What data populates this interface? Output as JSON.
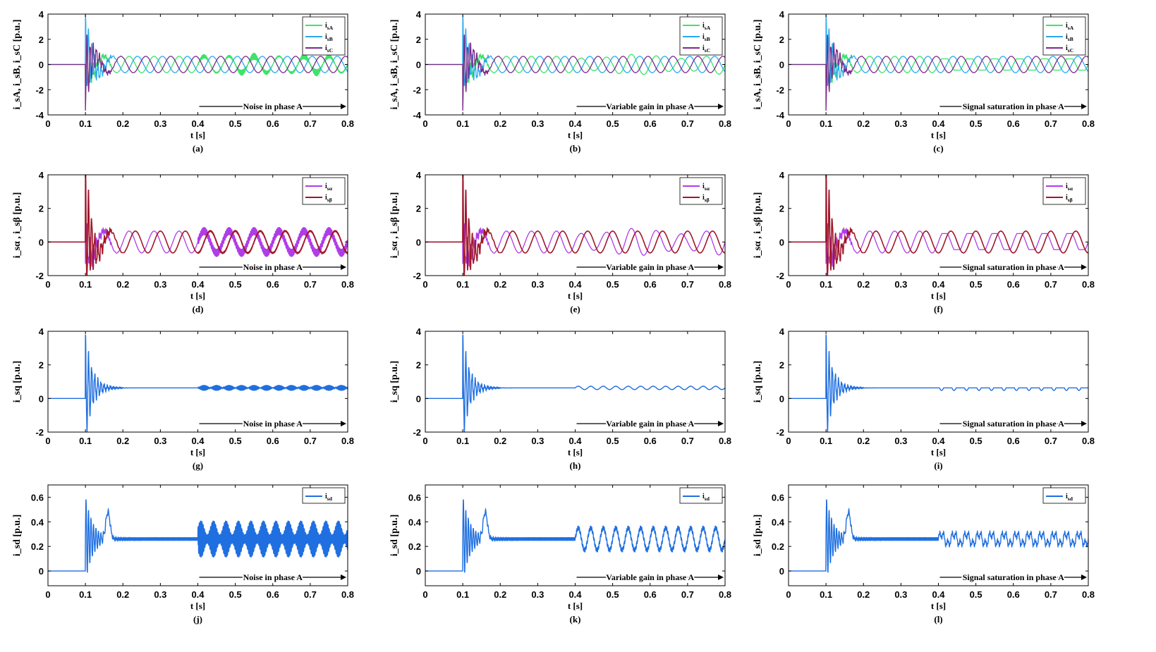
{
  "figure": {
    "colors": {
      "isA": "#3ee36a",
      "isB": "#2ba8ef",
      "isC": "#7a2a8a",
      "ialpha": "#b03ce8",
      "ibeta": "#a0182c",
      "iq": "#1f6fe0",
      "id": "#1f6fe0"
    },
    "columns": [
      "Noise in phase A",
      "Variable gain in phase A",
      "Signal saturation in phase A"
    ]
  },
  "chart_data": [
    {
      "panel": "(a)",
      "type": "line",
      "row": 0,
      "col": 0,
      "ylabel": "i_sA, i_sB, i_sC [p.u.]",
      "xlabel": "t [s]",
      "xlim": [
        0,
        0.8
      ],
      "ylim": [
        -4,
        4
      ],
      "xticks": [
        "0",
        "0.1",
        "0.2",
        "0.3",
        "0.4",
        "0.5",
        "0.6",
        "0.7",
        "0.8"
      ],
      "yticks": [
        "4",
        "2",
        "0",
        "-2",
        "-4"
      ],
      "series": [
        {
          "name": "i_sA"
        },
        {
          "name": "i_sB"
        },
        {
          "name": "i_sC"
        }
      ],
      "annotation": "Noise in phase A",
      "legend": "top-right",
      "grid": false
    },
    {
      "panel": "(b)",
      "type": "line",
      "row": 0,
      "col": 1,
      "ylabel": "i_sA, i_sB, i_sC [p.u.]",
      "xlabel": "t [s]",
      "xlim": [
        0,
        0.8
      ],
      "ylim": [
        -4,
        4
      ],
      "xticks": [
        "0",
        "0.1",
        "0.2",
        "0.3",
        "0.4",
        "0.5",
        "0.6",
        "0.7",
        "0.8"
      ],
      "yticks": [
        "4",
        "2",
        "0",
        "-2",
        "-4"
      ],
      "series": [
        {
          "name": "i_sA"
        },
        {
          "name": "i_sB"
        },
        {
          "name": "i_sC"
        }
      ],
      "annotation": "Variable gain in phase A",
      "legend": "top-right",
      "grid": false
    },
    {
      "panel": "(c)",
      "type": "line",
      "row": 0,
      "col": 2,
      "ylabel": "i_sA, i_sB, i_sC [p.u.]",
      "xlabel": "t [s]",
      "xlim": [
        0,
        0.8
      ],
      "ylim": [
        -4,
        4
      ],
      "xticks": [
        "0",
        "0.1",
        "0.2",
        "0.3",
        "0.4",
        "0.5",
        "0.6",
        "0.7",
        "0.8"
      ],
      "yticks": [
        "4",
        "2",
        "0",
        "-2",
        "-4"
      ],
      "series": [
        {
          "name": "i_sA"
        },
        {
          "name": "i_sB"
        },
        {
          "name": "i_sC"
        }
      ],
      "annotation": "Signal saturation in phase A",
      "legend": "top-right",
      "grid": false
    },
    {
      "panel": "(d)",
      "type": "line",
      "row": 1,
      "col": 0,
      "ylabel": "i_sα , i_sβ [p.u.]",
      "xlabel": "t [s]",
      "xlim": [
        0,
        0.8
      ],
      "ylim": [
        -2,
        4
      ],
      "xticks": [
        "0",
        "0.1",
        "0.2",
        "0.3",
        "0.4",
        "0.5",
        "0.6",
        "0.7",
        "0.8"
      ],
      "yticks": [
        "4",
        "2",
        "0",
        "-2"
      ],
      "series": [
        {
          "name": "i_sα"
        },
        {
          "name": "i_sβ"
        }
      ],
      "annotation": "Noise in phase A",
      "legend": "top-right",
      "grid": false
    },
    {
      "panel": "(e)",
      "type": "line",
      "row": 1,
      "col": 1,
      "ylabel": "i_sα , i_sβ [p.u.]",
      "xlabel": "t [s]",
      "xlim": [
        0,
        0.8
      ],
      "ylim": [
        -2,
        4
      ],
      "xticks": [
        "0",
        "0.1",
        "0.2",
        "0.3",
        "0.4",
        "0.5",
        "0.6",
        "0.7",
        "0.8"
      ],
      "yticks": [
        "4",
        "2",
        "0",
        "-2"
      ],
      "series": [
        {
          "name": "i_sα"
        },
        {
          "name": "i_sβ"
        }
      ],
      "annotation": "Variable gain in phase A",
      "legend": "top-right",
      "grid": false
    },
    {
      "panel": "(f)",
      "type": "line",
      "row": 1,
      "col": 2,
      "ylabel": "i_sα , i_sβ [p.u.]",
      "xlabel": "t [s]",
      "xlim": [
        0,
        0.8
      ],
      "ylim": [
        -2,
        4
      ],
      "xticks": [
        "0",
        "0.1",
        "0.2",
        "0.3",
        "0.4",
        "0.5",
        "0.6",
        "0.7",
        "0.8"
      ],
      "yticks": [
        "4",
        "2",
        "0",
        "-2"
      ],
      "series": [
        {
          "name": "i_sα"
        },
        {
          "name": "i_sβ"
        }
      ],
      "annotation": "Signal saturation in phase A",
      "legend": "top-right",
      "grid": false
    },
    {
      "panel": "(g)",
      "type": "line",
      "row": 2,
      "col": 0,
      "ylabel": "i_sq [p.u.]",
      "xlabel": "t [s]",
      "xlim": [
        0,
        0.8
      ],
      "ylim": [
        -2,
        4
      ],
      "xticks": [
        "0",
        "0.1",
        "0.2",
        "0.3",
        "0.4",
        "0.5",
        "0.6",
        "0.7",
        "0.8"
      ],
      "yticks": [
        "4",
        "2",
        "0",
        "-2"
      ],
      "series": [
        {
          "name": ""
        }
      ],
      "annotation": "Noise in phase A",
      "grid": false
    },
    {
      "panel": "(h)",
      "type": "line",
      "row": 2,
      "col": 1,
      "ylabel": "i_sq [p.u.]",
      "xlabel": "t [s]",
      "xlim": [
        0,
        0.8
      ],
      "ylim": [
        -2,
        4
      ],
      "xticks": [
        "0",
        "0.1",
        "0.2",
        "0.3",
        "0.4",
        "0.5",
        "0.6",
        "0.7",
        "0.8"
      ],
      "yticks": [
        "4",
        "2",
        "0",
        "-2"
      ],
      "series": [
        {
          "name": ""
        }
      ],
      "annotation": "Variable gain in phase A",
      "grid": false
    },
    {
      "panel": "(i)",
      "type": "line",
      "row": 2,
      "col": 2,
      "ylabel": "i_sq [p.u.]",
      "xlabel": "t [s]",
      "xlim": [
        0,
        0.8
      ],
      "ylim": [
        -2,
        4
      ],
      "xticks": [
        "0",
        "0.1",
        "0.2",
        "0.3",
        "0.4",
        "0.5",
        "0.6",
        "0.7",
        "0.8"
      ],
      "yticks": [
        "4",
        "2",
        "0",
        "-2"
      ],
      "series": [
        {
          "name": ""
        }
      ],
      "annotation": "Signal saturation in phase A",
      "grid": false
    },
    {
      "panel": "(j)",
      "type": "line",
      "row": 3,
      "col": 0,
      "ylabel": "i_sd [p.u.]",
      "xlabel": "t [s]",
      "xlim": [
        0,
        0.8
      ],
      "ylim": [
        -0.12,
        0.7
      ],
      "xticks": [
        "0",
        "0.1",
        "0.2",
        "0.3",
        "0.4",
        "0.5",
        "0.6",
        "0.7",
        "0.8"
      ],
      "yticks": [
        "0.6",
        "0.4",
        "0.2",
        "0"
      ],
      "series": [
        {
          "name": "i_sd"
        }
      ],
      "annotation": "Noise in phase A",
      "legend": "top-right",
      "grid": false
    },
    {
      "panel": "(k)",
      "type": "line",
      "row": 3,
      "col": 1,
      "ylabel": "i_sd [p.u.]",
      "xlabel": "t [s]",
      "xlim": [
        0,
        0.8
      ],
      "ylim": [
        -0.12,
        0.7
      ],
      "xticks": [
        "0",
        "0.1",
        "0.2",
        "0.3",
        "0.4",
        "0.5",
        "0.6",
        "0.7",
        "0.8"
      ],
      "yticks": [
        "0.6",
        "0.4",
        "0.2",
        "0"
      ],
      "series": [
        {
          "name": "i_sd"
        }
      ],
      "annotation": "Variable gain in phase A",
      "legend": "top-right",
      "grid": false
    },
    {
      "panel": "(l)",
      "type": "line",
      "row": 3,
      "col": 2,
      "ylabel": "i_sd [p.u.]",
      "xlabel": "t [s]",
      "xlim": [
        0,
        0.8
      ],
      "ylim": [
        -0.12,
        0.7
      ],
      "xticks": [
        "0",
        "0.1",
        "0.2",
        "0.3",
        "0.4",
        "0.5",
        "0.6",
        "0.7",
        "0.8"
      ],
      "yticks": [
        "0.6",
        "0.4",
        "0.2",
        "0"
      ],
      "series": [
        {
          "name": "i_sd"
        }
      ],
      "annotation": "Signal saturation in phase A",
      "legend": "top-right",
      "grid": false
    }
  ]
}
